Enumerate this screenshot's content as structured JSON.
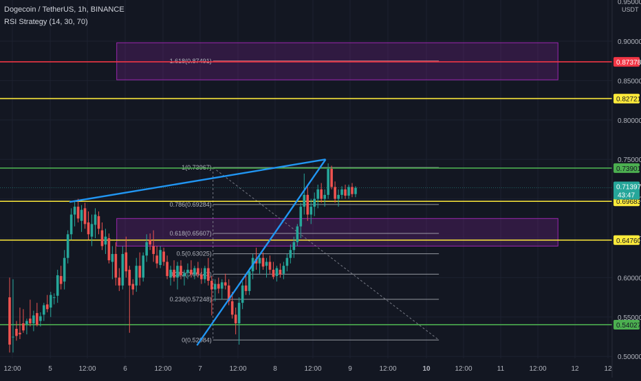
{
  "header": {
    "symbol_line": "Dogecoin / TetherUS, 1h, BINANCE",
    "indicator_line": "RSI Strategy (14, 30, 70)"
  },
  "chart_data": {
    "type": "candlestick",
    "price_axis": {
      "currency": "USDT",
      "top_partial": "0.95000",
      "ticks": [
        "0.90000",
        "0.85000",
        "0.80000",
        "0.75000",
        "0.70000",
        "0.65000",
        "0.60000",
        "0.55000",
        "0.50000"
      ],
      "ylim": [
        0.497,
        0.955
      ]
    },
    "time_axis": {
      "labels": [
        "12:00",
        "5",
        "12:00",
        "6",
        "12:00",
        "7",
        "12:00",
        "8",
        "12:00",
        "9",
        "12:00",
        "10",
        "12:00",
        "11",
        "12:00",
        "12",
        "12"
      ],
      "bold": [
        "10"
      ]
    },
    "horizontal_levels": [
      {
        "price": 0.87378,
        "label": "0.87378",
        "color": "#f23645",
        "text_color": "#ffffff"
      },
      {
        "price": 0.82721,
        "label": "0.82721",
        "color": "#ffeb3b",
        "text_color": "#131722"
      },
      {
        "price": 0.73901,
        "label": "0.73901",
        "color": "#4caf50",
        "text_color": "#131722"
      },
      {
        "price": 0.69683,
        "label": "0.69683",
        "color": "#ffeb3b",
        "text_color": "#131722"
      },
      {
        "price": 0.6476,
        "label": "0.64760",
        "color": "#ffeb3b",
        "text_color": "#131722"
      },
      {
        "price": 0.54027,
        "label": "0.54027",
        "color": "#4caf50",
        "text_color": "#131722"
      }
    ],
    "last_price": {
      "label": "0.71397",
      "countdown": "43:47",
      "price": 0.71397,
      "color": "#26a69a"
    },
    "zones": [
      {
        "price_top": 0.898,
        "price_bottom": 0.851
      },
      {
        "price_top": 0.675,
        "price_bottom": 0.64
      }
    ],
    "fib_levels": [
      {
        "label": "1.618(0.87491)",
        "price": 0.87491
      },
      {
        "label": "1(0.73967)",
        "price": 0.73967
      },
      {
        "label": "0.786(0.69284)",
        "price": 0.69284
      },
      {
        "label": "0.618(0.65607)",
        "price": 0.65607
      },
      {
        "label": "0.5(0.63025)",
        "price": 0.63025
      },
      {
        "label": "0.382(0.60443)",
        "price": 0.60443
      },
      {
        "label": "0.236(0.57248)",
        "price": 0.57248
      },
      {
        "label": "0(0.52084)",
        "price": 0.52084
      }
    ],
    "wedge": {
      "upper": [
        [
          0.1136,
          0.696
        ],
        [
          0.532,
          0.75
        ]
      ],
      "lower": [
        [
          0.3218,
          0.514
        ],
        [
          0.532,
          0.75
        ]
      ]
    },
    "candles": [
      [
        0,
        0.575,
        0.6,
        0.505,
        0.515
      ],
      [
        1,
        0.525,
        0.598,
        0.505,
        0.525
      ],
      [
        2,
        0.535,
        0.545,
        0.52,
        0.526
      ],
      [
        3,
        0.53,
        0.562,
        0.522,
        0.528
      ],
      [
        4,
        0.542,
        0.56,
        0.53,
        0.533
      ],
      [
        5,
        0.541,
        0.548,
        0.528,
        0.545
      ],
      [
        6,
        0.548,
        0.572,
        0.538,
        0.542
      ],
      [
        7,
        0.542,
        0.558,
        0.532,
        0.552
      ],
      [
        8,
        0.555,
        0.568,
        0.538,
        0.54
      ],
      [
        9,
        0.545,
        0.556,
        0.538,
        0.551
      ],
      [
        10,
        0.553,
        0.568,
        0.545,
        0.565
      ],
      [
        11,
        0.566,
        0.578,
        0.556,
        0.56
      ],
      [
        12,
        0.562,
        0.582,
        0.55,
        0.578
      ],
      [
        13,
        0.575,
        0.58,
        0.566,
        0.575
      ],
      [
        14,
        0.577,
        0.61,
        0.568,
        0.603
      ],
      [
        15,
        0.602,
        0.615,
        0.585,
        0.592
      ],
      [
        16,
        0.595,
        0.635,
        0.585,
        0.625
      ],
      [
        17,
        0.625,
        0.66,
        0.618,
        0.655
      ],
      [
        18,
        0.655,
        0.688,
        0.648,
        0.68
      ],
      [
        19,
        0.68,
        0.698,
        0.665,
        0.69
      ],
      [
        20,
        0.69,
        0.7,
        0.67,
        0.675
      ],
      [
        21,
        0.672,
        0.692,
        0.658,
        0.686
      ],
      [
        22,
        0.688,
        0.695,
        0.662,
        0.668
      ],
      [
        23,
        0.67,
        0.684,
        0.648,
        0.655
      ],
      [
        24,
        0.652,
        0.68,
        0.64,
        0.668
      ],
      [
        25,
        0.667,
        0.688,
        0.65,
        0.68
      ],
      [
        26,
        0.678,
        0.684,
        0.655,
        0.662
      ],
      [
        27,
        0.66,
        0.67,
        0.635,
        0.64
      ],
      [
        28,
        0.642,
        0.662,
        0.63,
        0.652
      ],
      [
        29,
        0.65,
        0.656,
        0.618,
        0.622
      ],
      [
        30,
        0.62,
        0.64,
        0.598,
        0.63
      ],
      [
        31,
        0.63,
        0.645,
        0.59,
        0.6
      ],
      [
        32,
        0.6,
        0.612,
        0.583,
        0.59
      ],
      [
        33,
        0.59,
        0.64,
        0.585,
        0.63
      ],
      [
        34,
        0.632,
        0.652,
        0.6,
        0.608
      ],
      [
        35,
        0.61,
        0.615,
        0.53,
        0.59
      ],
      [
        36,
        0.592,
        0.598,
        0.578,
        0.585
      ],
      [
        37,
        0.59,
        0.625,
        0.582,
        0.615
      ],
      [
        38,
        0.615,
        0.632,
        0.59,
        0.6
      ],
      [
        39,
        0.6,
        0.632,
        0.595,
        0.628
      ],
      [
        40,
        0.628,
        0.655,
        0.62,
        0.645
      ],
      [
        41,
        0.648,
        0.656,
        0.635,
        0.642
      ],
      [
        42,
        0.64,
        0.66,
        0.62,
        0.63
      ],
      [
        43,
        0.628,
        0.64,
        0.612,
        0.618
      ],
      [
        44,
        0.616,
        0.64,
        0.612,
        0.635
      ],
      [
        45,
        0.633,
        0.638,
        0.615,
        0.62
      ],
      [
        46,
        0.62,
        0.628,
        0.598,
        0.602
      ],
      [
        47,
        0.6,
        0.615,
        0.59,
        0.61
      ],
      [
        48,
        0.61,
        0.622,
        0.595,
        0.6
      ],
      [
        49,
        0.6,
        0.62,
        0.585,
        0.615
      ],
      [
        50,
        0.615,
        0.622,
        0.598,
        0.603
      ],
      [
        51,
        0.602,
        0.61,
        0.59,
        0.606
      ],
      [
        52,
        0.606,
        0.618,
        0.598,
        0.61
      ],
      [
        53,
        0.61,
        0.622,
        0.6,
        0.604
      ],
      [
        54,
        0.604,
        0.615,
        0.598,
        0.612
      ],
      [
        55,
        0.612,
        0.62,
        0.6,
        0.604
      ],
      [
        56,
        0.604,
        0.612,
        0.592,
        0.598
      ],
      [
        57,
        0.598,
        0.615,
        0.593,
        0.612
      ],
      [
        58,
        0.612,
        0.625,
        0.59,
        0.596
      ],
      [
        59,
        0.596,
        0.602,
        0.552,
        0.585
      ],
      [
        60,
        0.585,
        0.598,
        0.57,
        0.592
      ],
      [
        61,
        0.592,
        0.6,
        0.58,
        0.586
      ],
      [
        62,
        0.586,
        0.598,
        0.572,
        0.594
      ],
      [
        63,
        0.594,
        0.605,
        0.585,
        0.59
      ],
      [
        64,
        0.59,
        0.598,
        0.565,
        0.57
      ],
      [
        65,
        0.57,
        0.582,
        0.548,
        0.553
      ],
      [
        66,
        0.553,
        0.562,
        0.528,
        0.542
      ],
      [
        67,
        0.542,
        0.575,
        0.515,
        0.568
      ],
      [
        68,
        0.568,
        0.595,
        0.56,
        0.59
      ],
      [
        69,
        0.59,
        0.605,
        0.578,
        0.583
      ],
      [
        70,
        0.583,
        0.612,
        0.578,
        0.608
      ],
      [
        71,
        0.608,
        0.63,
        0.598,
        0.625
      ],
      [
        72,
        0.624,
        0.638,
        0.61,
        0.618
      ],
      [
        73,
        0.618,
        0.63,
        0.605,
        0.625
      ],
      [
        74,
        0.625,
        0.632,
        0.61,
        0.614
      ],
      [
        75,
        0.615,
        0.625,
        0.6,
        0.62
      ],
      [
        76,
        0.62,
        0.628,
        0.605,
        0.61
      ],
      [
        77,
        0.61,
        0.62,
        0.598,
        0.601
      ],
      [
        78,
        0.602,
        0.615,
        0.595,
        0.612
      ],
      [
        79,
        0.61,
        0.618,
        0.6,
        0.604
      ],
      [
        80,
        0.605,
        0.62,
        0.598,
        0.615
      ],
      [
        81,
        0.615,
        0.63,
        0.608,
        0.625
      ],
      [
        82,
        0.625,
        0.642,
        0.618,
        0.635
      ],
      [
        83,
        0.635,
        0.652,
        0.625,
        0.645
      ],
      [
        84,
        0.645,
        0.668,
        0.64,
        0.665
      ],
      [
        85,
        0.665,
        0.695,
        0.65,
        0.69
      ],
      [
        86,
        0.69,
        0.732,
        0.68,
        0.705
      ],
      [
        87,
        0.705,
        0.715,
        0.672,
        0.68
      ],
      [
        88,
        0.68,
        0.7,
        0.668,
        0.69
      ],
      [
        89,
        0.69,
        0.708,
        0.678,
        0.7
      ],
      [
        90,
        0.7,
        0.718,
        0.688,
        0.712
      ],
      [
        91,
        0.712,
        0.72,
        0.695,
        0.7
      ],
      [
        92,
        0.7,
        0.712,
        0.69,
        0.705
      ],
      [
        93,
        0.705,
        0.745,
        0.7,
        0.738
      ],
      [
        94,
        0.738,
        0.742,
        0.712,
        0.715
      ],
      [
        95,
        0.715,
        0.722,
        0.695,
        0.7
      ],
      [
        96,
        0.7,
        0.712,
        0.69,
        0.705
      ],
      [
        97,
        0.705,
        0.716,
        0.7,
        0.712
      ],
      [
        98,
        0.712,
        0.718,
        0.7,
        0.704
      ],
      [
        99,
        0.704,
        0.718,
        0.7,
        0.715
      ],
      [
        100,
        0.715,
        0.72,
        0.702,
        0.706
      ],
      [
        101,
        0.706,
        0.716,
        0.702,
        0.714
      ]
    ]
  }
}
